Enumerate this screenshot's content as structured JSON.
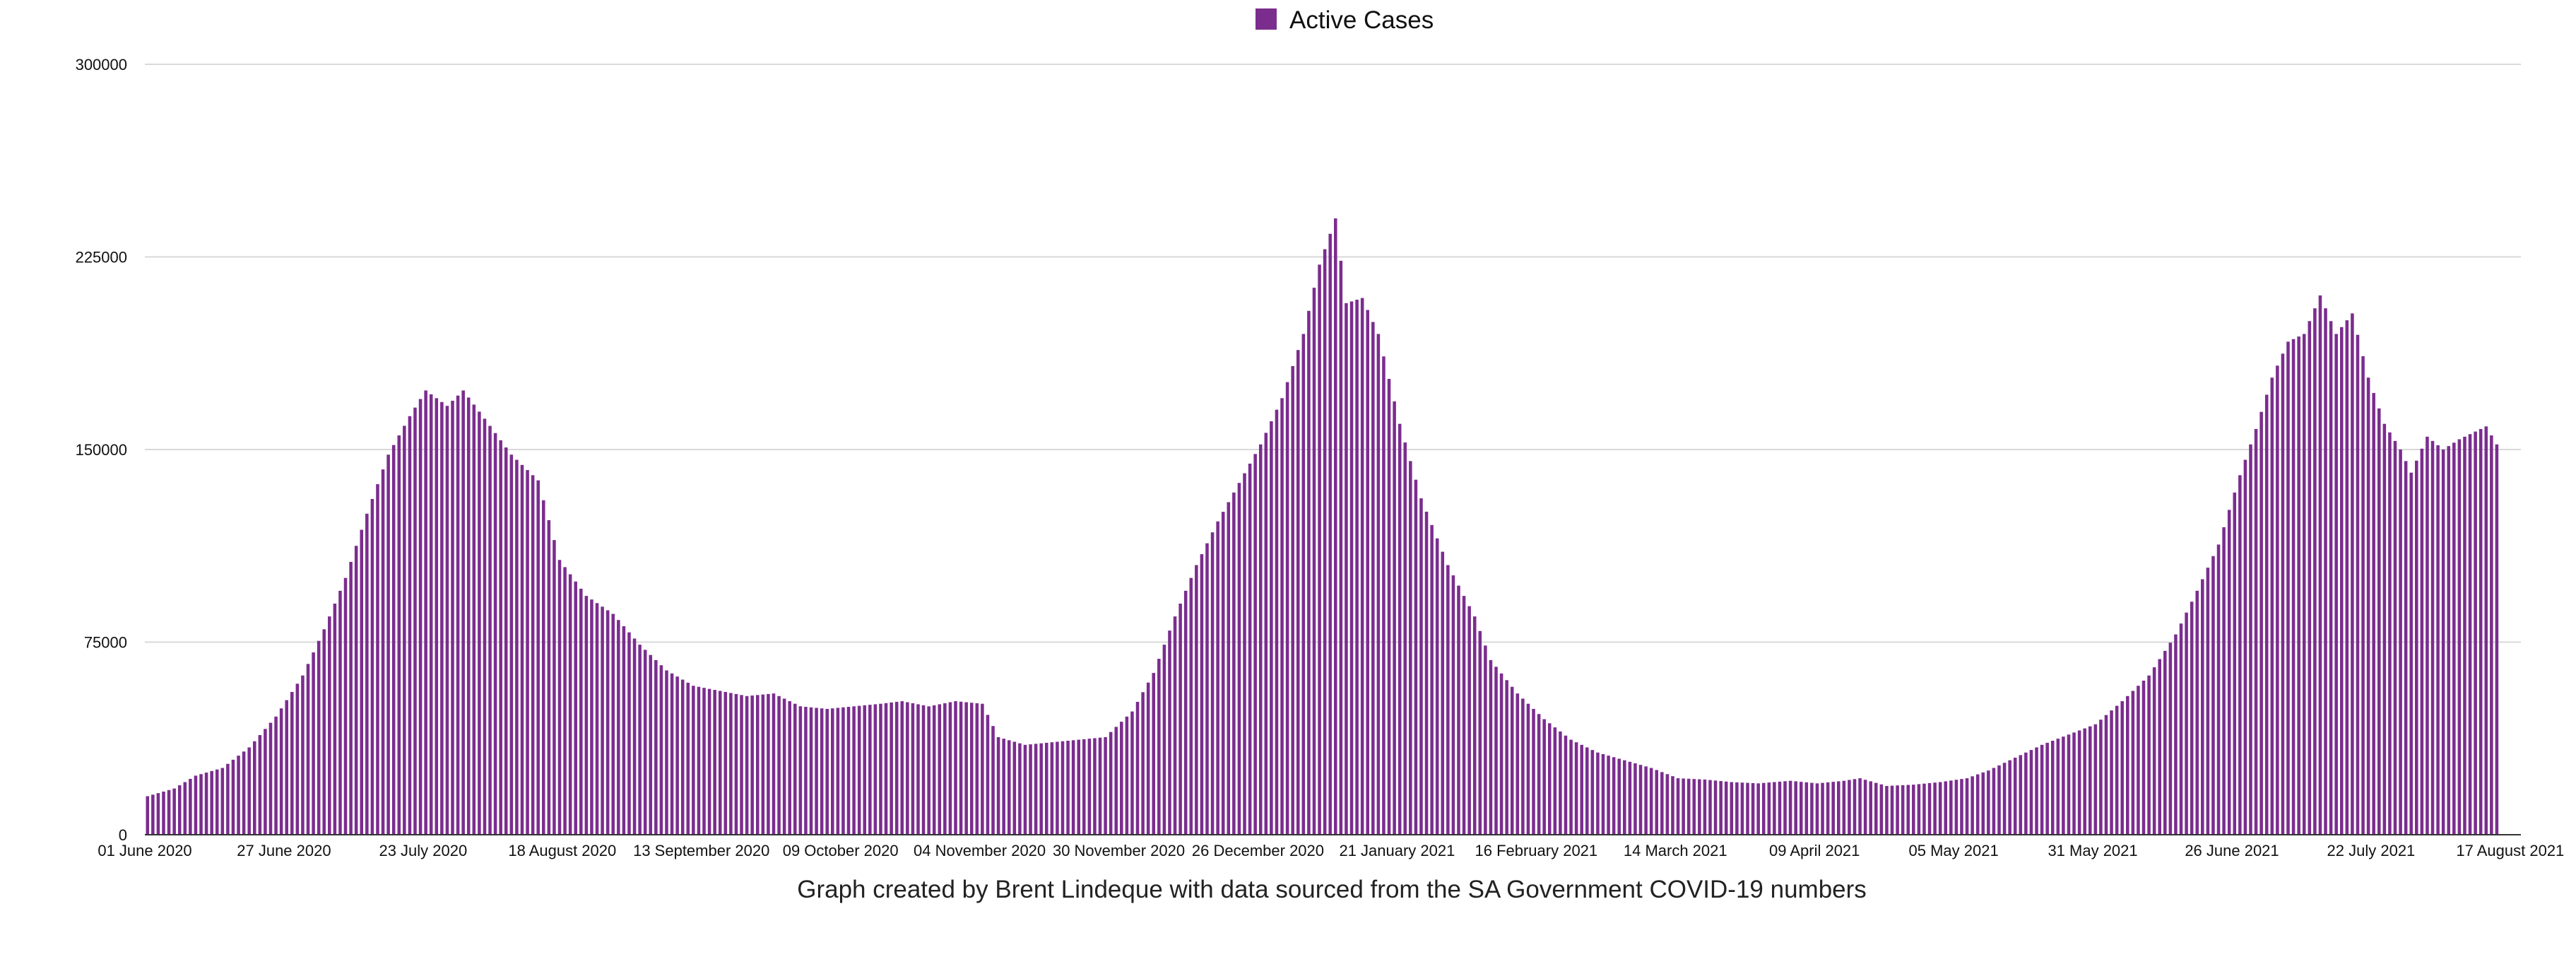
{
  "chart_data": {
    "type": "bar",
    "x_start_date": "2020-06-01",
    "legend": {
      "label": "Active Cases",
      "position": "top-center"
    },
    "caption": "Graph created by Brent Lindeque with data sourced from the SA Government COVID-19 numbers",
    "ylim": [
      0,
      300000
    ],
    "y_ticks": [
      "0",
      "75000",
      "150000",
      "225000",
      "300000"
    ],
    "x_ticks": [
      "01 June 2020",
      "27 June 2020",
      "23 July 2020",
      "18 August 2020",
      "13 September 2020",
      "09 October 2020",
      "04 November 2020",
      "30 November 2020",
      "26 December 2020",
      "21 January 2021",
      "16 February 2021",
      "14 March 2021",
      "09 April 2021",
      "05 May 2021",
      "31 May 2021",
      "26 June 2021",
      "22 July 2021",
      "17 August 2021"
    ],
    "grid": true,
    "x_domain_end": "2021-08-19",
    "series": [
      {
        "name": "Active Cases",
        "color": "#7b2d8e",
        "anchors": [
          [
            "2020-06-01",
            15000
          ],
          [
            "2020-06-06",
            18000
          ],
          [
            "2020-06-10",
            23000
          ],
          [
            "2020-06-15",
            26000
          ],
          [
            "2020-06-20",
            34000
          ],
          [
            "2020-06-25",
            46000
          ],
          [
            "2020-06-30",
            62000
          ],
          [
            "2020-07-04",
            80000
          ],
          [
            "2020-07-08",
            100000
          ],
          [
            "2020-07-12",
            125000
          ],
          [
            "2020-07-16",
            148000
          ],
          [
            "2020-07-20",
            163000
          ],
          [
            "2020-07-23",
            173000
          ],
          [
            "2020-07-27",
            167000
          ],
          [
            "2020-07-30",
            173000
          ],
          [
            "2020-08-03",
            162000
          ],
          [
            "2020-08-08",
            148000
          ],
          [
            "2020-08-13",
            138000
          ],
          [
            "2020-08-17",
            107000
          ],
          [
            "2020-08-22",
            93000
          ],
          [
            "2020-08-27",
            86000
          ],
          [
            "2020-09-01",
            74000
          ],
          [
            "2020-09-06",
            64000
          ],
          [
            "2020-09-11",
            58000
          ],
          [
            "2020-09-16",
            56000
          ],
          [
            "2020-09-21",
            54000
          ],
          [
            "2020-09-26",
            55000
          ],
          [
            "2020-10-01",
            50000
          ],
          [
            "2020-10-06",
            49000
          ],
          [
            "2020-10-11",
            50000
          ],
          [
            "2020-10-16",
            51000
          ],
          [
            "2020-10-20",
            52000
          ],
          [
            "2020-10-25",
            50000
          ],
          [
            "2020-10-30",
            52000
          ],
          [
            "2020-11-04",
            51000
          ],
          [
            "2020-11-07",
            38000
          ],
          [
            "2020-11-12",
            35000
          ],
          [
            "2020-11-17",
            36000
          ],
          [
            "2020-11-22",
            37000
          ],
          [
            "2020-11-27",
            38000
          ],
          [
            "2020-12-02",
            48000
          ],
          [
            "2020-12-06",
            63000
          ],
          [
            "2020-12-10",
            85000
          ],
          [
            "2020-12-14",
            105000
          ],
          [
            "2020-12-18",
            122000
          ],
          [
            "2020-12-22",
            137000
          ],
          [
            "2020-12-26",
            152000
          ],
          [
            "2020-12-30",
            170000
          ],
          [
            "2021-01-03",
            195000
          ],
          [
            "2021-01-06",
            222000
          ],
          [
            "2021-01-09",
            240000
          ],
          [
            "2021-01-11",
            207000
          ],
          [
            "2021-01-14",
            209000
          ],
          [
            "2021-01-17",
            195000
          ],
          [
            "2021-01-21",
            160000
          ],
          [
            "2021-01-25",
            131000
          ],
          [
            "2021-01-30",
            105000
          ],
          [
            "2021-02-04",
            85000
          ],
          [
            "2021-02-07",
            68000
          ],
          [
            "2021-02-12",
            55000
          ],
          [
            "2021-02-17",
            45000
          ],
          [
            "2021-02-22",
            37000
          ],
          [
            "2021-02-27",
            32000
          ],
          [
            "2021-03-04",
            29000
          ],
          [
            "2021-03-09",
            26000
          ],
          [
            "2021-03-14",
            22000
          ],
          [
            "2021-03-19",
            21500
          ],
          [
            "2021-03-24",
            20500
          ],
          [
            "2021-03-29",
            20000
          ],
          [
            "2021-04-04",
            21000
          ],
          [
            "2021-04-09",
            20000
          ],
          [
            "2021-04-14",
            21000
          ],
          [
            "2021-04-17",
            22000
          ],
          [
            "2021-04-22",
            19000
          ],
          [
            "2021-04-27",
            19500
          ],
          [
            "2021-05-02",
            20500
          ],
          [
            "2021-05-07",
            22000
          ],
          [
            "2021-05-11",
            25000
          ],
          [
            "2021-05-16",
            30000
          ],
          [
            "2021-05-21",
            35000
          ],
          [
            "2021-05-26",
            39000
          ],
          [
            "2021-05-31",
            43000
          ],
          [
            "2021-06-05",
            52000
          ],
          [
            "2021-06-10",
            62000
          ],
          [
            "2021-06-15",
            78000
          ],
          [
            "2021-06-19",
            95000
          ],
          [
            "2021-06-23",
            113000
          ],
          [
            "2021-06-27",
            140000
          ],
          [
            "2021-06-30",
            158000
          ],
          [
            "2021-07-03",
            178000
          ],
          [
            "2021-07-06",
            192000
          ],
          [
            "2021-07-09",
            195000
          ],
          [
            "2021-07-12",
            210000
          ],
          [
            "2021-07-15",
            195000
          ],
          [
            "2021-07-18",
            203000
          ],
          [
            "2021-07-21",
            178000
          ],
          [
            "2021-07-24",
            160000
          ],
          [
            "2021-07-27",
            150000
          ],
          [
            "2021-07-29",
            141000
          ],
          [
            "2021-08-01",
            155000
          ],
          [
            "2021-08-04",
            150000
          ],
          [
            "2021-08-07",
            154000
          ],
          [
            "2021-08-10",
            157000
          ],
          [
            "2021-08-12",
            159000
          ],
          [
            "2021-08-14",
            152000
          ]
        ]
      }
    ]
  }
}
